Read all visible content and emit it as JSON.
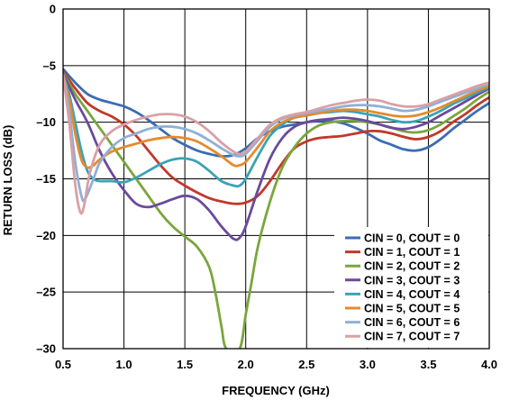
{
  "chart_data": {
    "type": "line",
    "xlabel": "FREQUENCY (GHz)",
    "ylabel": "RETURN LOSS (dB)",
    "xlim": [
      0.5,
      4.0
    ],
    "ylim": [
      -30,
      0
    ],
    "x_ticks": [
      "0.5",
      "1.0",
      "1.5",
      "2.0",
      "2.5",
      "3.0",
      "3.5",
      "4.0"
    ],
    "y_ticks": [
      "0",
      "–5",
      "–10",
      "–15",
      "–20",
      "–25",
      "–30"
    ],
    "grid": true,
    "legend_position": "bottom-right",
    "series": [
      {
        "name": "CIN = 0, COUT = 0",
        "color": "#3b6db3",
        "points": [
          [
            0.5,
            -5.3
          ],
          [
            0.6,
            -6.5
          ],
          [
            0.7,
            -7.5
          ],
          [
            0.8,
            -8.0
          ],
          [
            0.9,
            -8.3
          ],
          [
            1.0,
            -8.6
          ],
          [
            1.1,
            -9.1
          ],
          [
            1.2,
            -9.8
          ],
          [
            1.3,
            -10.6
          ],
          [
            1.4,
            -11.4
          ],
          [
            1.5,
            -12.0
          ],
          [
            1.6,
            -12.5
          ],
          [
            1.7,
            -12.8
          ],
          [
            1.8,
            -13.0
          ],
          [
            1.9,
            -12.9
          ],
          [
            2.0,
            -12.3
          ],
          [
            2.1,
            -11.4
          ],
          [
            2.2,
            -10.8
          ],
          [
            2.3,
            -10.4
          ],
          [
            2.4,
            -10.2
          ],
          [
            2.5,
            -10.0
          ],
          [
            2.6,
            -9.9
          ],
          [
            2.7,
            -9.9
          ],
          [
            2.8,
            -10.1
          ],
          [
            2.9,
            -10.5
          ],
          [
            3.0,
            -11.0
          ],
          [
            3.1,
            -11.6
          ],
          [
            3.2,
            -12.0
          ],
          [
            3.3,
            -12.4
          ],
          [
            3.4,
            -12.5
          ],
          [
            3.5,
            -12.2
          ],
          [
            3.6,
            -11.5
          ],
          [
            3.7,
            -10.6
          ],
          [
            3.8,
            -9.8
          ],
          [
            3.9,
            -9.0
          ],
          [
            4.0,
            -8.3
          ]
        ]
      },
      {
        "name": "CIN = 1, COUT = 1",
        "color": "#c0392b",
        "points": [
          [
            0.5,
            -5.5
          ],
          [
            0.6,
            -7.0
          ],
          [
            0.7,
            -8.3
          ],
          [
            0.8,
            -9.0
          ],
          [
            0.9,
            -9.5
          ],
          [
            1.0,
            -10.2
          ],
          [
            1.1,
            -11.2
          ],
          [
            1.2,
            -12.5
          ],
          [
            1.3,
            -13.8
          ],
          [
            1.4,
            -14.9
          ],
          [
            1.5,
            -15.6
          ],
          [
            1.6,
            -16.2
          ],
          [
            1.7,
            -16.7
          ],
          [
            1.8,
            -17.0
          ],
          [
            1.9,
            -17.2
          ],
          [
            2.0,
            -17.1
          ],
          [
            2.1,
            -16.5
          ],
          [
            2.2,
            -15.2
          ],
          [
            2.3,
            -13.6
          ],
          [
            2.4,
            -12.3
          ],
          [
            2.5,
            -11.7
          ],
          [
            2.6,
            -11.4
          ],
          [
            2.7,
            -11.3
          ],
          [
            2.8,
            -11.2
          ],
          [
            2.9,
            -11.0
          ],
          [
            3.0,
            -10.8
          ],
          [
            3.1,
            -10.8
          ],
          [
            3.2,
            -11.0
          ],
          [
            3.3,
            -11.3
          ],
          [
            3.4,
            -11.5
          ],
          [
            3.5,
            -11.3
          ],
          [
            3.6,
            -10.8
          ],
          [
            3.7,
            -10.0
          ],
          [
            3.8,
            -9.3
          ],
          [
            3.9,
            -8.5
          ],
          [
            4.0,
            -7.8
          ]
        ]
      },
      {
        "name": "CIN = 2, COUT = 2",
        "color": "#7aa63c",
        "points": [
          [
            0.5,
            -5.6
          ],
          [
            0.6,
            -7.5
          ],
          [
            0.7,
            -9.0
          ],
          [
            0.8,
            -10.5
          ],
          [
            0.9,
            -12.0
          ],
          [
            1.0,
            -13.5
          ],
          [
            1.1,
            -15.0
          ],
          [
            1.2,
            -16.5
          ],
          [
            1.3,
            -18.0
          ],
          [
            1.4,
            -19.2
          ],
          [
            1.5,
            -20.1
          ],
          [
            1.6,
            -21.0
          ],
          [
            1.7,
            -22.8
          ],
          [
            1.75,
            -25.0
          ],
          [
            1.8,
            -28.0
          ],
          [
            1.84,
            -30.0
          ],
          [
            1.95,
            -30.0
          ],
          [
            2.0,
            -27.0
          ],
          [
            2.05,
            -24.0
          ],
          [
            2.1,
            -21.0
          ],
          [
            2.2,
            -17.0
          ],
          [
            2.3,
            -14.0
          ],
          [
            2.4,
            -12.2
          ],
          [
            2.5,
            -11.0
          ],
          [
            2.6,
            -10.3
          ],
          [
            2.7,
            -10.0
          ],
          [
            2.8,
            -9.9
          ],
          [
            2.9,
            -9.9
          ],
          [
            3.0,
            -10.0
          ],
          [
            3.1,
            -10.2
          ],
          [
            3.2,
            -10.5
          ],
          [
            3.3,
            -10.8
          ],
          [
            3.4,
            -10.9
          ],
          [
            3.5,
            -10.7
          ],
          [
            3.6,
            -10.2
          ],
          [
            3.7,
            -9.5
          ],
          [
            3.8,
            -8.8
          ],
          [
            3.9,
            -8.0
          ],
          [
            4.0,
            -7.3
          ]
        ]
      },
      {
        "name": "CIN = 3, COUT = 3",
        "color": "#6a4a9c",
        "points": [
          [
            0.5,
            -5.7
          ],
          [
            0.6,
            -8.0
          ],
          [
            0.7,
            -10.0
          ],
          [
            0.8,
            -12.5
          ],
          [
            0.9,
            -14.5
          ],
          [
            1.0,
            -16.0
          ],
          [
            1.1,
            -17.2
          ],
          [
            1.2,
            -17.5
          ],
          [
            1.3,
            -17.2
          ],
          [
            1.4,
            -16.8
          ],
          [
            1.5,
            -16.5
          ],
          [
            1.6,
            -16.8
          ],
          [
            1.7,
            -17.8
          ],
          [
            1.8,
            -19.2
          ],
          [
            1.9,
            -20.3
          ],
          [
            1.95,
            -20.2
          ],
          [
            2.0,
            -19.2
          ],
          [
            2.1,
            -16.0
          ],
          [
            2.2,
            -13.2
          ],
          [
            2.3,
            -11.4
          ],
          [
            2.4,
            -10.4
          ],
          [
            2.5,
            -10.0
          ],
          [
            2.6,
            -9.8
          ],
          [
            2.7,
            -9.7
          ],
          [
            2.8,
            -9.6
          ],
          [
            2.9,
            -9.7
          ],
          [
            3.0,
            -9.9
          ],
          [
            3.1,
            -10.2
          ],
          [
            3.2,
            -10.5
          ],
          [
            3.3,
            -10.6
          ],
          [
            3.4,
            -10.4
          ],
          [
            3.5,
            -10.0
          ],
          [
            3.6,
            -9.4
          ],
          [
            3.7,
            -8.8
          ],
          [
            3.8,
            -8.2
          ],
          [
            3.9,
            -7.6
          ],
          [
            4.0,
            -7.0
          ]
        ]
      },
      {
        "name": "CIN = 4, COUT = 4",
        "color": "#3aa3b5",
        "points": [
          [
            0.5,
            -5.8
          ],
          [
            0.55,
            -7.5
          ],
          [
            0.6,
            -10.0
          ],
          [
            0.65,
            -12.5
          ],
          [
            0.7,
            -14.3
          ],
          [
            0.75,
            -15.0
          ],
          [
            0.8,
            -15.2
          ],
          [
            0.9,
            -15.2
          ],
          [
            1.0,
            -15.3
          ],
          [
            1.1,
            -14.9
          ],
          [
            1.2,
            -14.3
          ],
          [
            1.3,
            -13.7
          ],
          [
            1.4,
            -13.3
          ],
          [
            1.5,
            -13.2
          ],
          [
            1.6,
            -13.5
          ],
          [
            1.7,
            -14.3
          ],
          [
            1.8,
            -15.2
          ],
          [
            1.9,
            -15.6
          ],
          [
            1.95,
            -15.6
          ],
          [
            2.0,
            -15.0
          ],
          [
            2.1,
            -13.0
          ],
          [
            2.2,
            -11.2
          ],
          [
            2.3,
            -10.2
          ],
          [
            2.4,
            -9.6
          ],
          [
            2.5,
            -9.4
          ],
          [
            2.6,
            -9.2
          ],
          [
            2.7,
            -9.1
          ],
          [
            2.8,
            -9.0
          ],
          [
            2.9,
            -9.1
          ],
          [
            3.0,
            -9.3
          ],
          [
            3.1,
            -9.5
          ],
          [
            3.2,
            -9.8
          ],
          [
            3.3,
            -10.0
          ],
          [
            3.4,
            -9.9
          ],
          [
            3.5,
            -9.5
          ],
          [
            3.6,
            -9.0
          ],
          [
            3.7,
            -8.4
          ],
          [
            3.8,
            -7.9
          ],
          [
            3.9,
            -7.4
          ],
          [
            4.0,
            -6.9
          ]
        ]
      },
      {
        "name": "CIN = 5, COUT = 5",
        "color": "#e58a2e",
        "points": [
          [
            0.5,
            -5.8
          ],
          [
            0.55,
            -8.0
          ],
          [
            0.6,
            -11.0
          ],
          [
            0.65,
            -13.3
          ],
          [
            0.7,
            -14.0
          ],
          [
            0.75,
            -13.8
          ],
          [
            0.8,
            -13.3
          ],
          [
            0.9,
            -12.6
          ],
          [
            1.0,
            -12.2
          ],
          [
            1.1,
            -11.9
          ],
          [
            1.2,
            -11.6
          ],
          [
            1.3,
            -11.4
          ],
          [
            1.4,
            -11.3
          ],
          [
            1.5,
            -11.4
          ],
          [
            1.6,
            -11.7
          ],
          [
            1.7,
            -12.3
          ],
          [
            1.8,
            -13.0
          ],
          [
            1.9,
            -13.8
          ],
          [
            1.95,
            -13.8
          ],
          [
            2.0,
            -13.5
          ],
          [
            2.1,
            -12.2
          ],
          [
            2.2,
            -10.8
          ],
          [
            2.3,
            -10.0
          ],
          [
            2.4,
            -9.6
          ],
          [
            2.5,
            -9.4
          ],
          [
            2.6,
            -9.2
          ],
          [
            2.7,
            -9.0
          ],
          [
            2.8,
            -8.9
          ],
          [
            2.9,
            -8.9
          ],
          [
            3.0,
            -9.0
          ],
          [
            3.1,
            -9.2
          ],
          [
            3.2,
            -9.4
          ],
          [
            3.3,
            -9.5
          ],
          [
            3.4,
            -9.4
          ],
          [
            3.5,
            -9.1
          ],
          [
            3.6,
            -8.7
          ],
          [
            3.7,
            -8.2
          ],
          [
            3.8,
            -7.7
          ],
          [
            3.9,
            -7.2
          ],
          [
            4.0,
            -6.8
          ]
        ]
      },
      {
        "name": "CIN = 6, COUT = 6",
        "color": "#8fb0d6",
        "points": [
          [
            0.5,
            -5.8
          ],
          [
            0.55,
            -9.0
          ],
          [
            0.6,
            -13.5
          ],
          [
            0.65,
            -16.5
          ],
          [
            0.68,
            -16.8
          ],
          [
            0.75,
            -15.0
          ],
          [
            0.8,
            -13.6
          ],
          [
            0.9,
            -12.2
          ],
          [
            1.0,
            -11.4
          ],
          [
            1.1,
            -11.0
          ],
          [
            1.2,
            -10.6
          ],
          [
            1.3,
            -10.4
          ],
          [
            1.4,
            -10.4
          ],
          [
            1.5,
            -10.6
          ],
          [
            1.6,
            -11.0
          ],
          [
            1.7,
            -11.6
          ],
          [
            1.8,
            -12.3
          ],
          [
            1.9,
            -12.9
          ],
          [
            1.95,
            -13.0
          ],
          [
            2.0,
            -12.8
          ],
          [
            2.1,
            -11.6
          ],
          [
            2.2,
            -10.4
          ],
          [
            2.3,
            -9.7
          ],
          [
            2.4,
            -9.4
          ],
          [
            2.5,
            -9.2
          ],
          [
            2.6,
            -9.0
          ],
          [
            2.7,
            -8.8
          ],
          [
            2.8,
            -8.6
          ],
          [
            2.9,
            -8.5
          ],
          [
            3.0,
            -8.5
          ],
          [
            3.1,
            -8.6
          ],
          [
            3.2,
            -8.8
          ],
          [
            3.3,
            -9.0
          ],
          [
            3.4,
            -8.9
          ],
          [
            3.5,
            -8.6
          ],
          [
            3.6,
            -8.2
          ],
          [
            3.7,
            -7.8
          ],
          [
            3.8,
            -7.4
          ],
          [
            3.9,
            -7.0
          ],
          [
            4.0,
            -6.6
          ]
        ]
      },
      {
        "name": "CIN = 7, COUT = 7",
        "color": "#d9a0a6",
        "points": [
          [
            0.5,
            -5.8
          ],
          [
            0.55,
            -10.0
          ],
          [
            0.6,
            -15.5
          ],
          [
            0.64,
            -17.9
          ],
          [
            0.67,
            -17.5
          ],
          [
            0.72,
            -14.5
          ],
          [
            0.8,
            -12.0
          ],
          [
            0.9,
            -10.8
          ],
          [
            1.0,
            -10.2
          ],
          [
            1.1,
            -9.8
          ],
          [
            1.2,
            -9.5
          ],
          [
            1.3,
            -9.3
          ],
          [
            1.4,
            -9.3
          ],
          [
            1.5,
            -9.5
          ],
          [
            1.6,
            -10.0
          ],
          [
            1.7,
            -10.8
          ],
          [
            1.8,
            -11.8
          ],
          [
            1.9,
            -12.6
          ],
          [
            1.95,
            -12.8
          ],
          [
            2.0,
            -12.6
          ],
          [
            2.1,
            -11.4
          ],
          [
            2.2,
            -10.2
          ],
          [
            2.3,
            -9.6
          ],
          [
            2.4,
            -9.3
          ],
          [
            2.5,
            -9.1
          ],
          [
            2.6,
            -8.8
          ],
          [
            2.7,
            -8.5
          ],
          [
            2.8,
            -8.3
          ],
          [
            2.9,
            -8.1
          ],
          [
            3.0,
            -8.0
          ],
          [
            3.1,
            -8.1
          ],
          [
            3.2,
            -8.4
          ],
          [
            3.3,
            -8.6
          ],
          [
            3.4,
            -8.6
          ],
          [
            3.5,
            -8.4
          ],
          [
            3.6,
            -8.0
          ],
          [
            3.7,
            -7.6
          ],
          [
            3.8,
            -7.2
          ],
          [
            3.9,
            -6.8
          ],
          [
            4.0,
            -6.5
          ]
        ]
      }
    ]
  }
}
